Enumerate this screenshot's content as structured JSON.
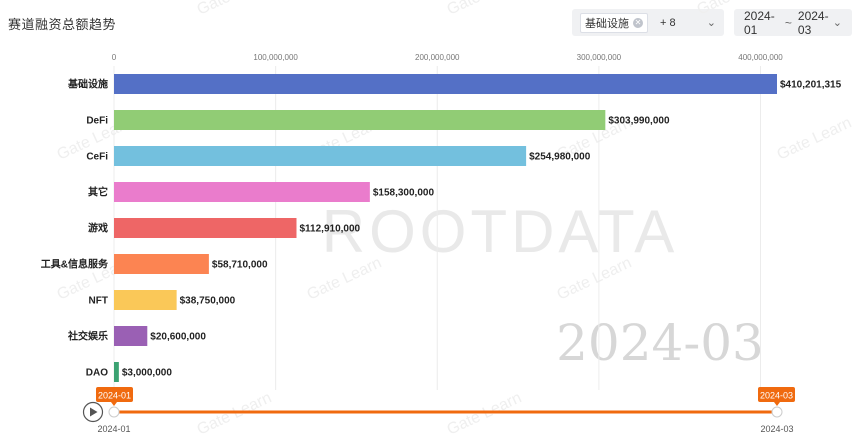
{
  "header": {
    "title": "赛道融资总额趋势",
    "category_tag": "基础设施",
    "more_count": "+ 8",
    "date_start": "2024-01",
    "date_separator": "~",
    "date_end": "2024-03"
  },
  "watermark": {
    "brand": "ROOTDATA",
    "period": "2024-03",
    "tile_text": "Gate Learn"
  },
  "timeline": {
    "start_label": "2024-01",
    "end_label": "2024-03",
    "start_flag": "2024-01",
    "end_flag": "2024-03",
    "progress": 1.0,
    "accent": "#f06a0f"
  },
  "chart_data": {
    "type": "bar",
    "orientation": "horizontal",
    "categories": [
      "基础设施",
      "DeFi",
      "CeFi",
      "其它",
      "游戏",
      "工具&信息服务",
      "NFT",
      "社交娱乐",
      "DAO"
    ],
    "values": [
      410201315,
      303990000,
      254980000,
      158300000,
      112910000,
      58710000,
      38750000,
      20600000,
      3000000
    ],
    "value_labels": [
      "$410,201,315",
      "$303,990,000",
      "$254,980,000",
      "$158,300,000",
      "$112,910,000",
      "$58,710,000",
      "$38,750,000",
      "$20,600,000",
      "$3,000,000"
    ],
    "colors": [
      "#5470c6",
      "#91cc75",
      "#73c0de",
      "#ea7ccc",
      "#ee6666",
      "#fc8452",
      "#fac858",
      "#9a60b4",
      "#3ba272"
    ],
    "xticks": [
      0,
      100000000,
      200000000,
      300000000,
      400000000
    ],
    "xtick_labels": [
      "0",
      "100,000,000",
      "200,000,000",
      "300,000,000",
      "400,000,000"
    ],
    "xlim": [
      0,
      410201315
    ],
    "grid": true
  }
}
